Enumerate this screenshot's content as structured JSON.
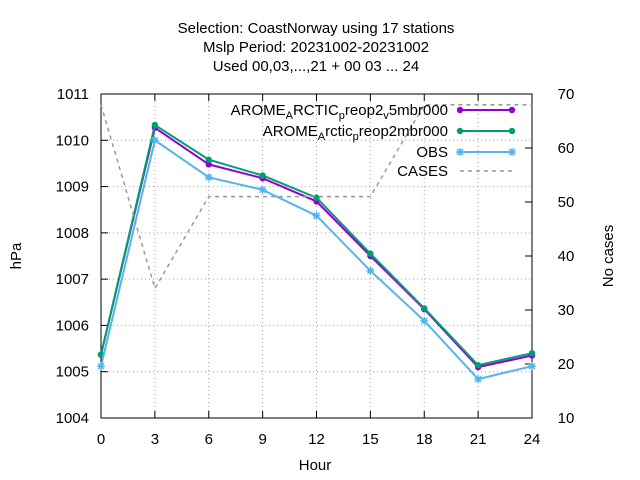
{
  "chart_data": {
    "type": "line",
    "title_lines": [
      "Selection: CoastNorway using    17 stations",
      "Mslp   Period: 20231002-20231002",
      "Used  00,03,...,21  + 00 03 ... 24"
    ],
    "xlabel": "Hour",
    "ylabel": "hPa",
    "y2label": "No cases",
    "xlim": [
      0,
      24
    ],
    "ylim": [
      1004,
      1011
    ],
    "y2lim": [
      10,
      70
    ],
    "xticks": [
      0,
      3,
      6,
      9,
      12,
      15,
      18,
      21,
      24
    ],
    "yticks": [
      1004,
      1005,
      1006,
      1007,
      1008,
      1009,
      1010,
      1011
    ],
    "y2ticks": [
      10,
      20,
      30,
      40,
      50,
      60,
      70
    ],
    "grid": true,
    "legend_position": "top-right",
    "x": [
      0,
      3,
      6,
      9,
      12,
      15,
      18,
      21,
      24
    ],
    "series": [
      {
        "name": "AROME_ARCTIC_preop2_v5mbr000",
        "legend_parts": [
          [
            "AROME",
            ""
          ],
          [
            "A",
            "sub"
          ],
          [
            "RCTIC",
            ""
          ],
          [
            "p",
            "sub"
          ],
          [
            "reop2",
            ""
          ],
          [
            "v",
            "sub"
          ],
          [
            "5mbr000",
            ""
          ]
        ],
        "color": "#9400d3",
        "marker": "circle",
        "axis": "y",
        "values": [
          1005.37,
          1010.27,
          1009.48,
          1009.18,
          1008.68,
          1007.5,
          1006.35,
          1005.1,
          1005.35
        ]
      },
      {
        "name": "AROME_Arctic_preop2mbr000",
        "legend_parts": [
          [
            "AROME",
            ""
          ],
          [
            "A",
            "sub"
          ],
          [
            "rctic",
            ""
          ],
          [
            "p",
            "sub"
          ],
          [
            "reop2mbr000",
            ""
          ]
        ],
        "color": "#009e73",
        "marker": "circle",
        "axis": "y",
        "values": [
          1005.37,
          1010.33,
          1009.58,
          1009.24,
          1008.76,
          1007.55,
          1006.37,
          1005.14,
          1005.4
        ]
      },
      {
        "name": "OBS",
        "legend_parts": [
          [
            "OBS",
            ""
          ]
        ],
        "color": "#56b4e9",
        "marker": "star",
        "axis": "y",
        "values": [
          1005.12,
          1010.0,
          1009.2,
          1008.93,
          1008.37,
          1007.18,
          1006.1,
          1004.84,
          1005.12
        ]
      },
      {
        "name": "CASES",
        "legend_parts": [
          [
            "CASES",
            ""
          ]
        ],
        "color": "#999999",
        "marker": "none",
        "dashed": true,
        "axis": "y2",
        "values": [
          68,
          34,
          51,
          51,
          51,
          51,
          68,
          68,
          68
        ]
      }
    ]
  }
}
